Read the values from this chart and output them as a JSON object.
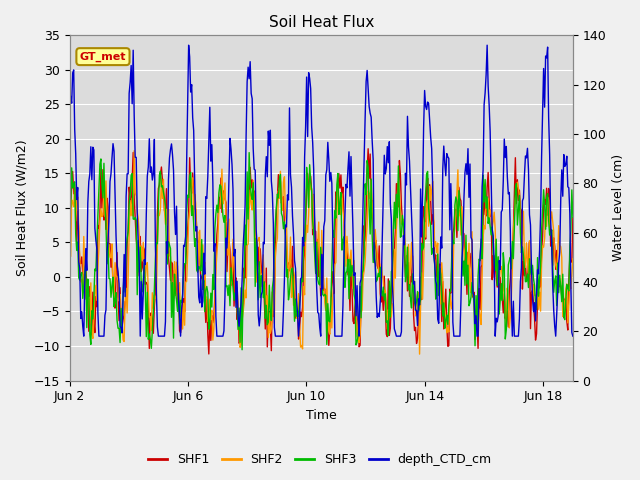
{
  "title": "Soil Heat Flux",
  "ylabel_left": "Soil Heat Flux (W/m2)",
  "ylabel_right": "Water Level (cm)",
  "xlabel": "Time",
  "ylim_left": [
    -15,
    35
  ],
  "ylim_right": [
    0,
    140
  ],
  "fig_bg_color": "#f0f0f0",
  "plot_bg_color": "#dcdcdc",
  "legend_entries": [
    "SHF1",
    "SHF2",
    "SHF3",
    "depth_CTD_cm"
  ],
  "legend_colors": [
    "#cc0000",
    "#ff9900",
    "#00bb00",
    "#0000cc"
  ],
  "annotation_text": "GT_met",
  "annotation_color": "#cc0000",
  "annotation_bg": "#ffff99",
  "annotation_border": "#aa8800",
  "yticks_left": [
    -15,
    -10,
    -5,
    0,
    5,
    10,
    15,
    20,
    25,
    30,
    35
  ],
  "yticks_right": [
    0,
    20,
    40,
    60,
    80,
    100,
    120,
    140
  ],
  "xtick_positions": [
    0,
    4,
    8,
    12,
    16
  ],
  "xtick_labels": [
    "Jun 2",
    "Jun 6",
    "Jun 10",
    "Jun 14",
    "Jun 18"
  ],
  "xlim": [
    0,
    17
  ],
  "figsize": [
    6.4,
    4.8
  ],
  "dpi": 100,
  "grid_color": "#ffffff",
  "grid_linewidth": 0.8,
  "line_linewidth": 1.0,
  "n_points": 500,
  "seed": 7
}
